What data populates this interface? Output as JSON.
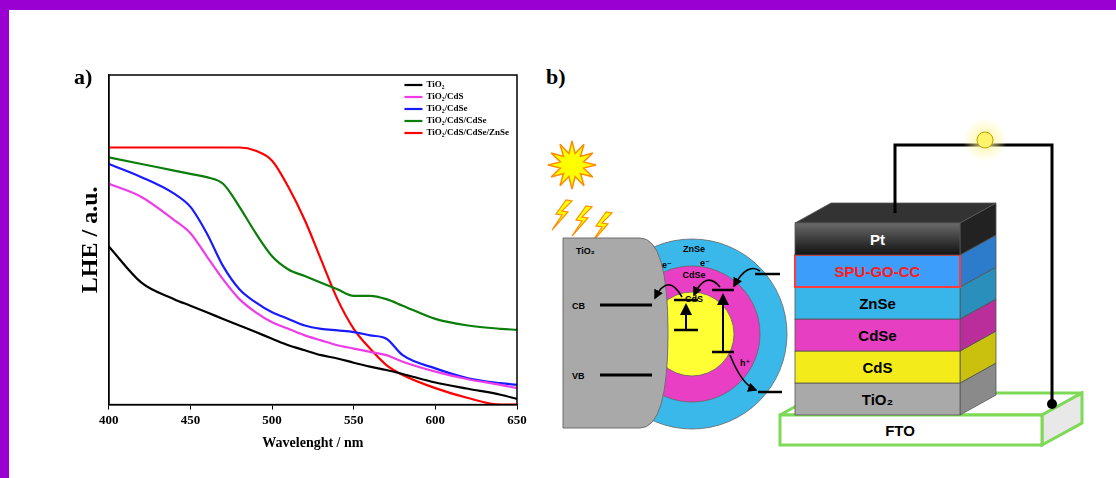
{
  "chart_data": {
    "type": "line",
    "panel_label": "a)",
    "x_label": "Wavelenght / nm",
    "y_label": "LHE / a.u.",
    "x": [
      400,
      420,
      440,
      450,
      460,
      470,
      480,
      490,
      500,
      510,
      520,
      530,
      540,
      550,
      560,
      570,
      580,
      600,
      620,
      640,
      650
    ],
    "series": [
      {
        "name": "TiO₂",
        "color": "#000000",
        "values": [
          0.48,
          0.37,
          0.32,
          0.3,
          0.28,
          0.26,
          0.24,
          0.22,
          0.2,
          0.18,
          0.165,
          0.15,
          0.14,
          0.127,
          0.115,
          0.105,
          0.093,
          0.067,
          0.048,
          0.03,
          0.017
        ]
      },
      {
        "name": "TiO₂/CdS",
        "color": "#ee3ce8",
        "values": [
          0.67,
          0.63,
          0.56,
          0.52,
          0.45,
          0.38,
          0.32,
          0.28,
          0.25,
          0.23,
          0.21,
          0.195,
          0.18,
          0.17,
          0.16,
          0.15,
          0.13,
          0.1,
          0.077,
          0.06,
          0.05
        ]
      },
      {
        "name": "TiO₂/CdSe",
        "color": "#1a1aff",
        "values": [
          0.73,
          0.69,
          0.64,
          0.6,
          0.52,
          0.42,
          0.35,
          0.31,
          0.28,
          0.26,
          0.24,
          0.23,
          0.225,
          0.22,
          0.21,
          0.2,
          0.15,
          0.11,
          0.08,
          0.065,
          0.06
        ]
      },
      {
        "name": "TiO₂/CdS/CdSe",
        "color": "#0a7d0a",
        "values": [
          0.75,
          0.73,
          0.71,
          0.7,
          0.69,
          0.67,
          0.6,
          0.52,
          0.45,
          0.41,
          0.39,
          0.37,
          0.35,
          0.33,
          0.33,
          0.32,
          0.3,
          0.26,
          0.24,
          0.23,
          0.227
        ]
      },
      {
        "name": "TiO₂/CdS/CdSe/ZnSe",
        "color": "#ff0000",
        "values": [
          0.78,
          0.78,
          0.78,
          0.78,
          0.78,
          0.78,
          0.78,
          0.77,
          0.74,
          0.66,
          0.56,
          0.44,
          0.32,
          0.23,
          0.17,
          0.12,
          0.09,
          0.05,
          0.02,
          0.0,
          0.0
        ]
      }
    ],
    "xlim": [
      400,
      650
    ],
    "xticks": [
      400,
      450,
      500,
      550,
      600,
      650
    ],
    "ylim": [
      0,
      1
    ],
    "tick_labels": "x",
    "grid": false,
    "legend": "upper right"
  },
  "diagram": {
    "panel_label": "b)",
    "core_shell": {
      "core": "TiO₂",
      "cb": "CB",
      "vb": "VB",
      "shells": [
        "CdS",
        "CdSe",
        "ZnSe"
      ],
      "electron": "e⁻",
      "hole": "h⁺"
    },
    "device_layers": [
      "FTO",
      "TiO₂",
      "CdS",
      "CdSe",
      "ZnSe",
      "SPU-GO-CC",
      "Pt"
    ]
  }
}
